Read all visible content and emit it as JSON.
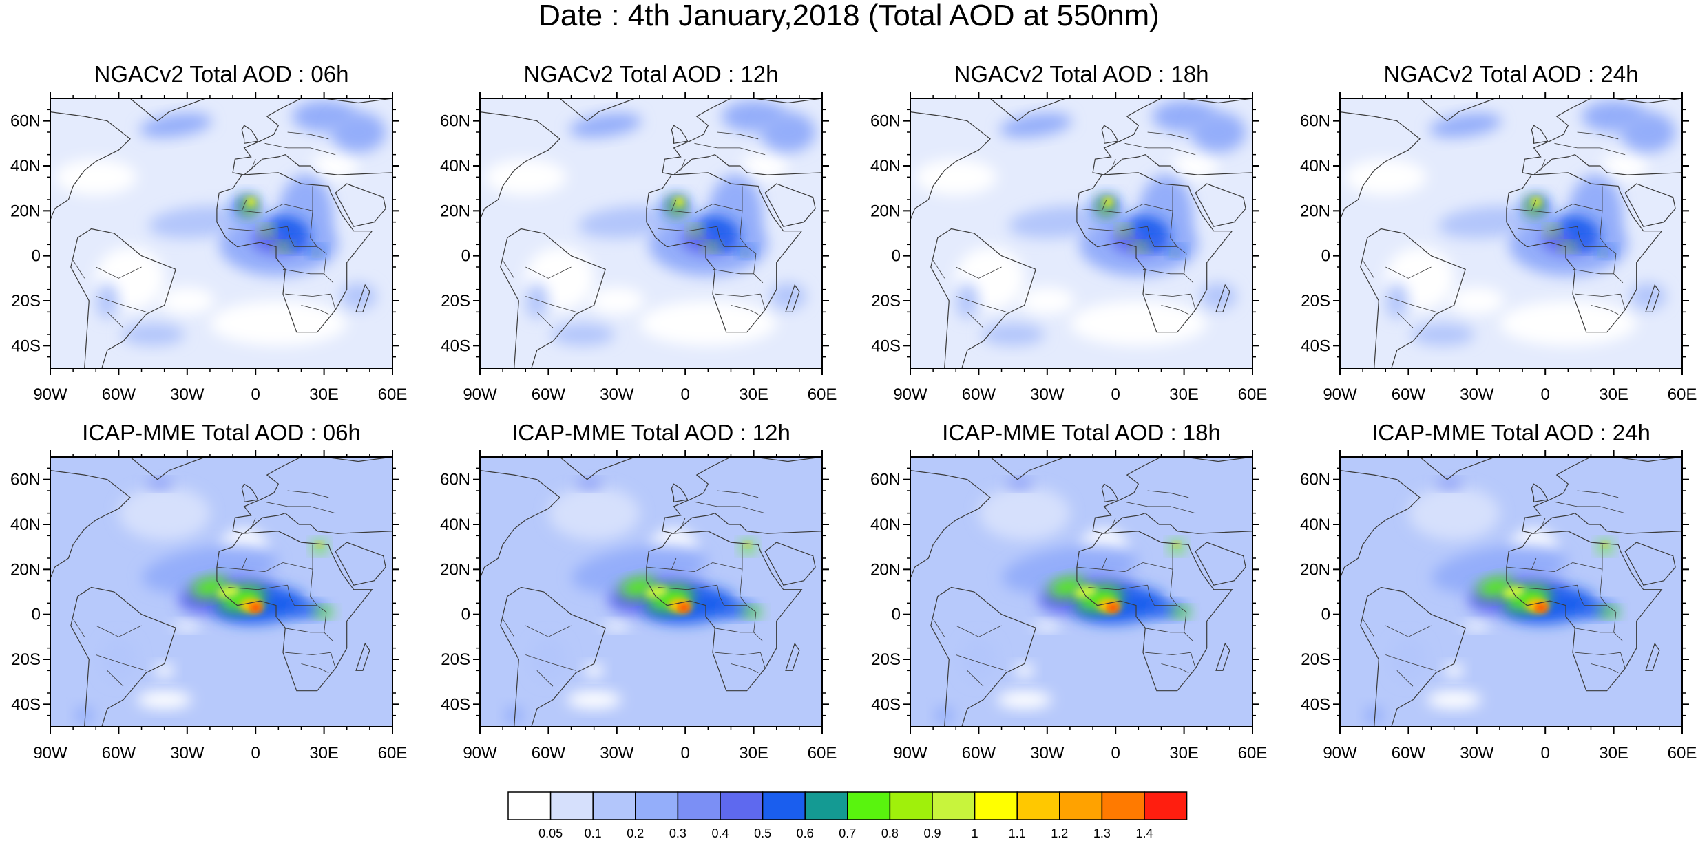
{
  "title": "Date : 4th January,2018 (Total AOD at 550nm)",
  "rows": [
    {
      "model": "NGACv2",
      "panels": [
        {
          "title": "NGACv2 Total AOD : 06h",
          "hour": "06h"
        },
        {
          "title": "NGACv2 Total AOD : 12h",
          "hour": "12h"
        },
        {
          "title": "NGACv2 Total AOD : 18h",
          "hour": "18h"
        },
        {
          "title": "NGACv2 Total AOD : 24h",
          "hour": "24h"
        }
      ]
    },
    {
      "model": "ICAP-MME",
      "panels": [
        {
          "title": "ICAP-MME Total AOD : 06h",
          "hour": "06h"
        },
        {
          "title": "ICAP-MME Total AOD : 12h",
          "hour": "12h"
        },
        {
          "title": "ICAP-MME Total AOD : 18h",
          "hour": "18h"
        },
        {
          "title": "ICAP-MME Total AOD : 24h",
          "hour": "24h"
        }
      ]
    }
  ],
  "map_extent": {
    "lon": [
      -90,
      60
    ],
    "lat": [
      -50,
      70
    ]
  },
  "lat_ticks": [
    {
      "value": 60,
      "label": "60N"
    },
    {
      "value": 40,
      "label": "40N"
    },
    {
      "value": 20,
      "label": "20N"
    },
    {
      "value": 0,
      "label": "0"
    },
    {
      "value": -20,
      "label": "20S"
    },
    {
      "value": -40,
      "label": "40S"
    }
  ],
  "lon_ticks": [
    {
      "value": -90,
      "label": "90W"
    },
    {
      "value": -60,
      "label": "60W"
    },
    {
      "value": -30,
      "label": "30W"
    },
    {
      "value": 0,
      "label": "0"
    },
    {
      "value": 30,
      "label": "30E"
    },
    {
      "value": 60,
      "label": "60E"
    }
  ],
  "colorbar": {
    "colors": [
      "#ffffff",
      "#d6e0fc",
      "#b3c6fb",
      "#94aefa",
      "#7b8ff5",
      "#5e69ef",
      "#1a5eee",
      "#149a93",
      "#59f40e",
      "#a0f00b",
      "#c8f43c",
      "#ffff00",
      "#ffc800",
      "#ffa200",
      "#ff7a00",
      "#ff1e0f"
    ],
    "labels": [
      "0.05",
      "0.1",
      "0.2",
      "0.3",
      "0.4",
      "0.5",
      "0.6",
      "0.7",
      "0.8",
      "0.9",
      "1",
      "1.1",
      "1.2",
      "1.3",
      "1.4"
    ]
  },
  "base_fill": "#b7c9fb",
  "coastline_color": "#3a3a3a"
}
